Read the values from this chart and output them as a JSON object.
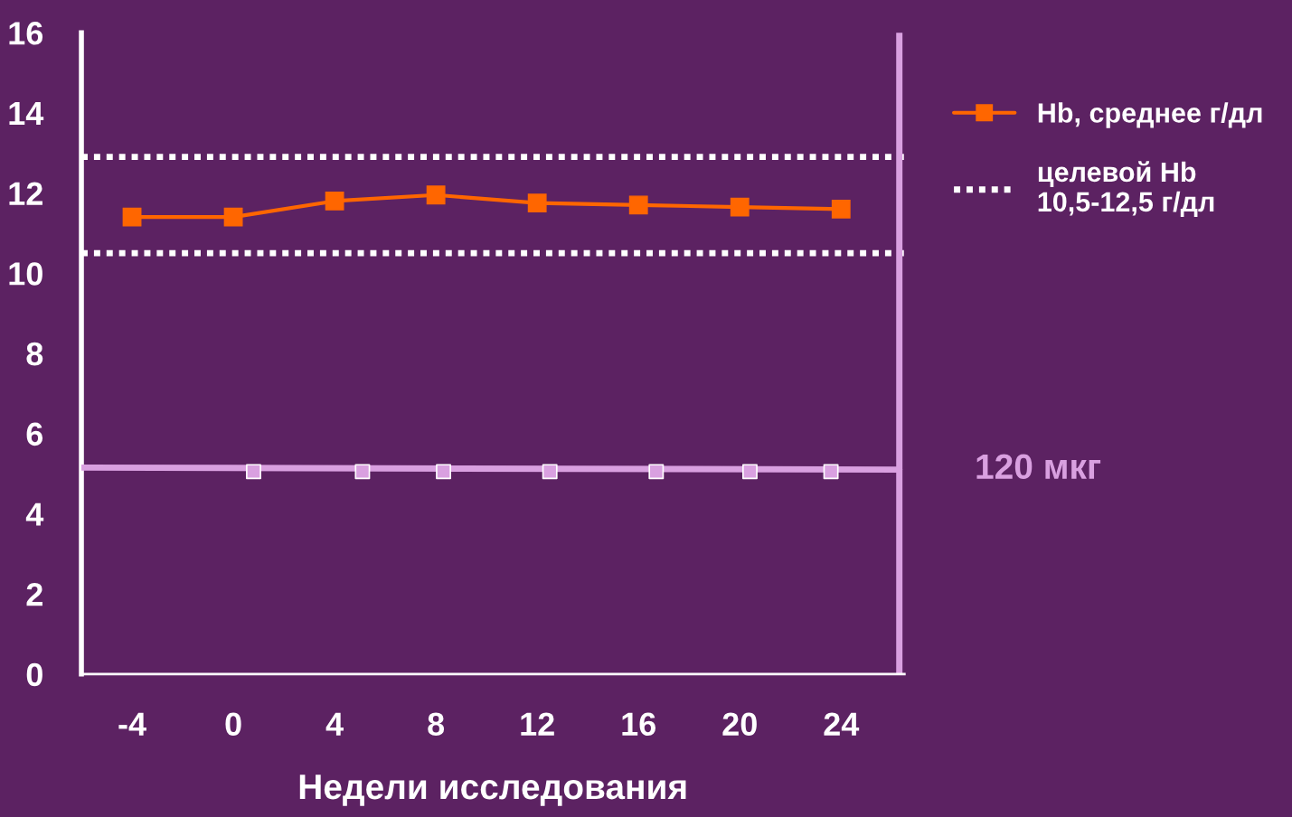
{
  "chart_data": {
    "type": "line",
    "xlabel": "Недели исследования",
    "xlim": [
      -6,
      26.5
    ],
    "xticks": [
      {
        "value": -4,
        "label": "-4"
      },
      0,
      4,
      8,
      12,
      16,
      20,
      24
    ],
    "ylim": [
      0,
      16
    ],
    "yticks": [
      0,
      2,
      4,
      6,
      8,
      10,
      12,
      14,
      16
    ],
    "series": [
      {
        "name": "Hb, среднее г/дл",
        "color": "#ff6600",
        "marker": "square",
        "x": [
          -4,
          0,
          4,
          8,
          12,
          16,
          20,
          24
        ],
        "values": [
          11.4,
          11.4,
          11.8,
          11.95,
          11.75,
          11.7,
          11.65,
          11.6
        ]
      },
      {
        "name": "120 мкг",
        "color": "#d9a0e0",
        "marker": "none",
        "x": [
          -6,
          26.3
        ],
        "values": [
          5.15,
          5.1
        ]
      },
      {
        "type": "scatter",
        "color": "#d9a0e0",
        "marker": "square",
        "x": [
          0.8,
          5.1,
          8.3,
          12.5,
          16.7,
          20.4,
          23.6
        ],
        "values": [
          5.05,
          5.05,
          5.05,
          5.05,
          5.05,
          5.05,
          5.05
        ]
      }
    ],
    "ref_lines": [
      {
        "axis": "y",
        "value": 12.9,
        "label": "целевой Hb\n10,5-12,5 г/дл",
        "color": "#ffffff",
        "line_style": "dotted"
      },
      {
        "axis": "y",
        "value": 10.5,
        "color": "#ffffff",
        "line_style": "dotted"
      },
      {
        "axis": "x",
        "value": 26.3,
        "color": "#d9a0e0",
        "line_style": "solid"
      }
    ],
    "grid": false,
    "legend": "right"
  }
}
